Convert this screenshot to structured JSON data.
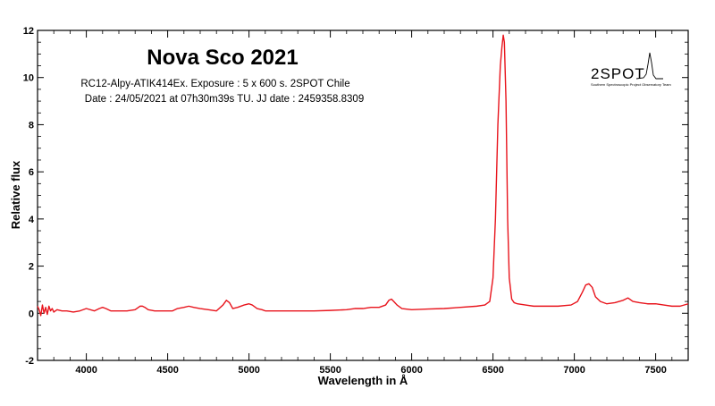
{
  "chart_data": {
    "type": "line",
    "title": "Nova Sco 2021",
    "subtitle_lines": [
      "RC12-Alpy-ATIK414Ex. Exposure : 5 x 600 s. 2SPOT Chile",
      "Date : 24/05/2021 at 07h30m39s TU. JJ date : 2459358.8309"
    ],
    "xlabel": "Wavelength in Å",
    "ylabel": "Relative flux",
    "xlim": [
      3700,
      7700
    ],
    "ylim": [
      -2,
      12
    ],
    "x_ticks": [
      4000,
      4500,
      5000,
      5500,
      6000,
      6500,
      7000,
      7500
    ],
    "y_ticks": [
      -2,
      0,
      2,
      4,
      6,
      8,
      10,
      12
    ],
    "grid": false,
    "series": [
      {
        "color": "#e8141c",
        "x": [
          3700,
          3710,
          3720,
          3730,
          3740,
          3750,
          3760,
          3770,
          3780,
          3790,
          3800,
          3820,
          3850,
          3880,
          3920,
          3960,
          4000,
          4050,
          4080,
          4100,
          4120,
          4150,
          4200,
          4250,
          4300,
          4330,
          4345,
          4360,
          4380,
          4420,
          4480,
          4530,
          4560,
          4600,
          4630,
          4660,
          4700,
          4750,
          4800,
          4840,
          4861,
          4880,
          4900,
          4930,
          4970,
          5000,
          5020,
          5050,
          5080,
          5100,
          5150,
          5200,
          5300,
          5400,
          5500,
          5600,
          5650,
          5700,
          5750,
          5800,
          5840,
          5860,
          5876,
          5890,
          5910,
          5940,
          6000,
          6100,
          6200,
          6300,
          6400,
          6450,
          6480,
          6500,
          6515,
          6530,
          6545,
          6555,
          6563,
          6570,
          6580,
          6590,
          6600,
          6615,
          6630,
          6650,
          6700,
          6750,
          6800,
          6900,
          6980,
          7020,
          7050,
          7070,
          7090,
          7110,
          7130,
          7160,
          7200,
          7250,
          7300,
          7330,
          7360,
          7400,
          7450,
          7500,
          7550,
          7600,
          7650,
          7700
        ],
        "y": [
          0.3,
          0.15,
          -0.1,
          0.35,
          0.0,
          0.25,
          -0.05,
          0.3,
          0.1,
          0.2,
          0.05,
          0.15,
          0.1,
          0.1,
          0.05,
          0.1,
          0.2,
          0.1,
          0.2,
          0.25,
          0.2,
          0.1,
          0.1,
          0.1,
          0.15,
          0.3,
          0.3,
          0.25,
          0.15,
          0.1,
          0.1,
          0.1,
          0.2,
          0.25,
          0.3,
          0.25,
          0.2,
          0.15,
          0.1,
          0.35,
          0.55,
          0.45,
          0.2,
          0.25,
          0.35,
          0.4,
          0.35,
          0.2,
          0.15,
          0.1,
          0.1,
          0.1,
          0.1,
          0.1,
          0.12,
          0.15,
          0.2,
          0.2,
          0.25,
          0.25,
          0.35,
          0.55,
          0.6,
          0.5,
          0.35,
          0.2,
          0.15,
          0.18,
          0.2,
          0.25,
          0.3,
          0.35,
          0.5,
          1.5,
          4.0,
          8.0,
          10.5,
          11.3,
          11.8,
          11.5,
          9.0,
          4.0,
          1.5,
          0.6,
          0.45,
          0.4,
          0.35,
          0.3,
          0.3,
          0.3,
          0.35,
          0.5,
          0.9,
          1.2,
          1.25,
          1.1,
          0.7,
          0.5,
          0.4,
          0.45,
          0.55,
          0.65,
          0.5,
          0.45,
          0.4,
          0.4,
          0.35,
          0.3,
          0.3,
          0.4
        ]
      }
    ]
  },
  "logo": {
    "text": "2SPOT",
    "subtext": "Southern Spectroscopic Project Observatory Team"
  }
}
